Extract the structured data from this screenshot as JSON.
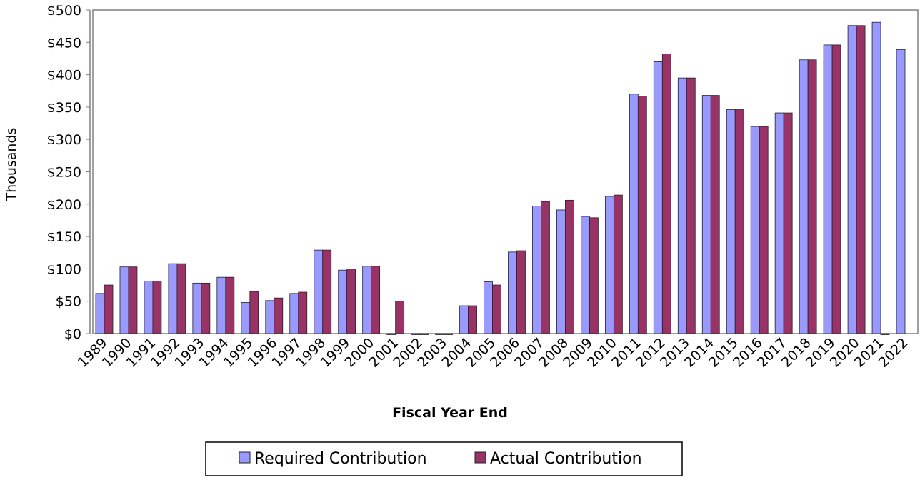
{
  "chart_data": {
    "type": "bar",
    "x_label": "Fiscal Year End",
    "y_label": "Thousands",
    "categories": [
      "1989",
      "1990",
      "1991",
      "1992",
      "1993",
      "1994",
      "1995",
      "1996",
      "1997",
      "1998",
      "1999",
      "2000",
      "2001",
      "2002",
      "2003",
      "2004",
      "2005",
      "2006",
      "2007",
      "2008",
      "2009",
      "2010",
      "2011",
      "2012",
      "2013",
      "2014",
      "2015",
      "2016",
      "2017",
      "2018",
      "2019",
      "2020",
      "2021",
      "2022"
    ],
    "series": [
      {
        "name": "Required Contribution",
        "color": "#9999ff",
        "values": [
          62,
          103,
          81,
          108,
          78,
          87,
          48,
          51,
          62,
          129,
          98,
          104,
          0,
          0,
          0,
          43,
          80,
          126,
          197,
          191,
          181,
          212,
          370,
          420,
          395,
          368,
          346,
          320,
          341,
          423,
          446,
          476,
          481,
          439
        ]
      },
      {
        "name": "Actual Contribution",
        "color": "#993366",
        "values": [
          75,
          103,
          81,
          108,
          78,
          87,
          65,
          55,
          64,
          129,
          100,
          104,
          50,
          0,
          0,
          43,
          75,
          128,
          204,
          206,
          179,
          214,
          367,
          432,
          395,
          368,
          346,
          320,
          341,
          423,
          446,
          476,
          0,
          null
        ]
      }
    ],
    "ylim": [
      0,
      500
    ],
    "yticks": [
      {
        "value": 0,
        "label": "$0"
      },
      {
        "value": 50,
        "label": "$50"
      },
      {
        "value": 100,
        "label": "$100"
      },
      {
        "value": 150,
        "label": "$150"
      },
      {
        "value": 200,
        "label": "$200"
      },
      {
        "value": 250,
        "label": "$250"
      },
      {
        "value": 300,
        "label": "$300"
      },
      {
        "value": 350,
        "label": "$350"
      },
      {
        "value": 400,
        "label": "$400"
      },
      {
        "value": 450,
        "label": "$450"
      },
      {
        "value": 500,
        "label": "$500"
      }
    ],
    "grid": false
  }
}
